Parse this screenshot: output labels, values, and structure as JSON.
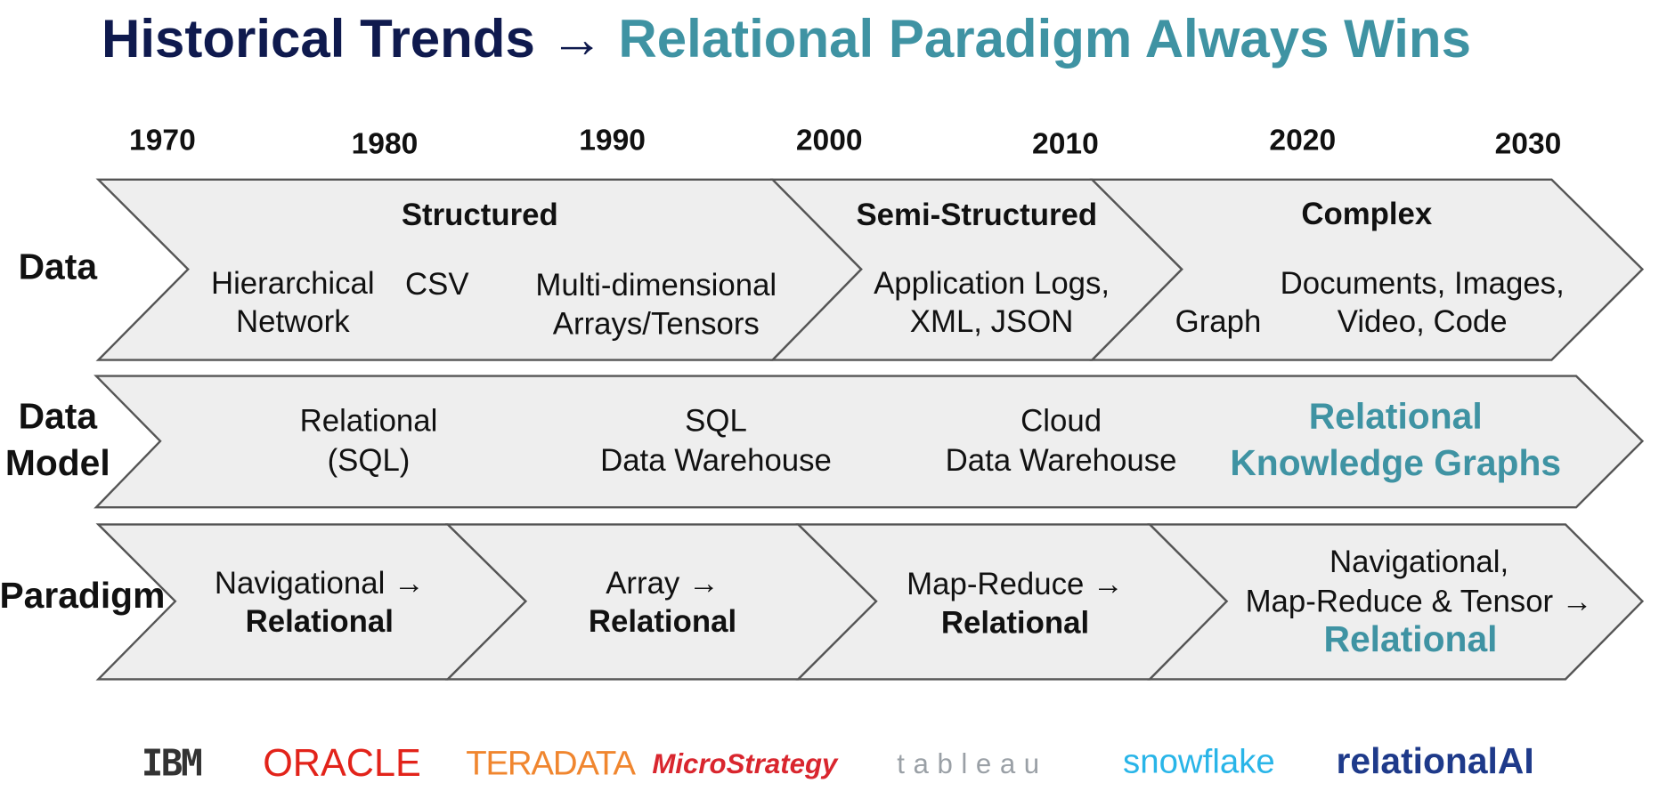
{
  "title": {
    "part1": "Historical Trends",
    "arrow": "→",
    "part2": "Relational Paradigm Always Wins"
  },
  "years": [
    "1970",
    "1980",
    "1990",
    "2000",
    "2010",
    "2020",
    "2030"
  ],
  "rows": [
    {
      "label": [
        "Data"
      ],
      "stages": [
        {
          "heading": "Structured",
          "items": [
            [
              "Hierarchical",
              "Network"
            ],
            [
              "CSV"
            ],
            [
              "Multi-dimensional",
              "Arrays/Tensors"
            ]
          ]
        },
        {
          "heading": "Semi-Structured",
          "items": [
            [
              "Application Logs,",
              "XML, JSON"
            ]
          ]
        },
        {
          "heading": "Complex",
          "items": [
            [
              "Graph"
            ],
            [
              "Documents, Images,",
              "Video, Code"
            ]
          ]
        }
      ]
    },
    {
      "label": [
        "Data",
        "Model"
      ],
      "stages": [
        {
          "items": [
            [
              "Relational",
              "(SQL)"
            ],
            [
              "SQL",
              "Data Warehouse"
            ],
            [
              "Cloud",
              "Data Warehouse"
            ],
            [
              "Relational",
              "Knowledge Graphs"
            ]
          ]
        }
      ]
    },
    {
      "label": [
        "Paradigm"
      ],
      "stages": [
        {
          "lines": [
            "Navigational →",
            "Relational"
          ]
        },
        {
          "lines": [
            "Array →",
            "Relational"
          ]
        },
        {
          "lines": [
            "Map-Reduce →",
            "Relational"
          ]
        },
        {
          "lines": [
            "Navigational,",
            "Map-Reduce & Tensor →",
            "Relational"
          ]
        }
      ]
    }
  ],
  "logos": [
    "IBM",
    "ORACLE",
    "TERADATA",
    "MicroStrategy",
    "tableau",
    "snowflake",
    "relationalAI"
  ]
}
